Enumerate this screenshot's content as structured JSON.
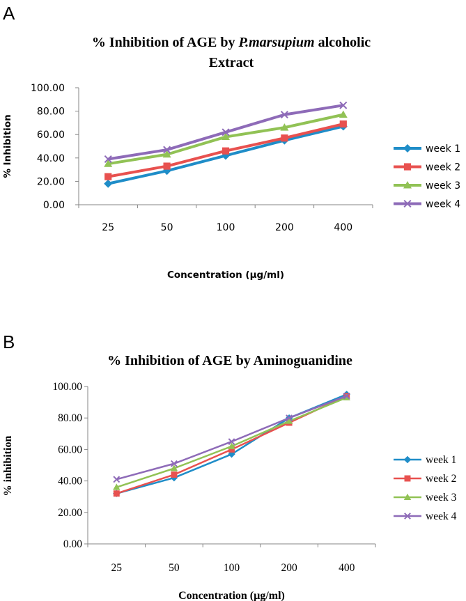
{
  "chart_data": [
    {
      "panel": "A",
      "type": "line",
      "title_parts": [
        {
          "text": "% Inhibition of AGE by ",
          "italic": false
        },
        {
          "text": "P.marsupium",
          "italic": true
        },
        {
          "text": " alcoholic",
          "italic": false
        }
      ],
      "title_line2": "Extract",
      "xlabel": "Concentration (µg/ml)",
      "ylabel": "% Inhibition",
      "categories": [
        "25",
        "50",
        "100",
        "200",
        "400"
      ],
      "ylim": [
        0,
        100
      ],
      "yticks": [
        "0.00",
        "20.00",
        "40.00",
        "60.00",
        "80.00",
        "100.00"
      ],
      "series": [
        {
          "name": "week 1",
          "color": "#1F8DC8",
          "marker": "diamond",
          "values": [
            18,
            29,
            42,
            55,
            67
          ]
        },
        {
          "name": "week 2",
          "color": "#E8514F",
          "marker": "square",
          "values": [
            24,
            33,
            46,
            57,
            69
          ]
        },
        {
          "name": "week 3",
          "color": "#91C255",
          "marker": "triangle",
          "values": [
            35,
            43,
            58,
            66,
            77
          ]
        },
        {
          "name": "week 4",
          "color": "#8E6BB8",
          "marker": "x",
          "values": [
            39,
            47,
            62,
            77,
            85
          ]
        }
      ]
    },
    {
      "panel": "B",
      "type": "line",
      "title_parts": [
        {
          "text": "% Inhibition of AGE by Aminoguanidine",
          "italic": false
        }
      ],
      "title_line2": "",
      "xlabel": "Concentration (µg/ml)",
      "ylabel": "% inhibition",
      "categories": [
        "25",
        "50",
        "100",
        "200",
        "400"
      ],
      "ylim": [
        0,
        100
      ],
      "yticks": [
        "0.00",
        "20.00",
        "40.00",
        "60.00",
        "80.00",
        "100.00"
      ],
      "series": [
        {
          "name": "week 1",
          "color": "#1F8DC8",
          "marker": "diamond",
          "values": [
            32,
            42,
            57,
            80,
            95
          ]
        },
        {
          "name": "week 2",
          "color": "#E8514F",
          "marker": "square",
          "values": [
            32,
            44,
            60,
            77,
            94
          ]
        },
        {
          "name": "week 3",
          "color": "#91C255",
          "marker": "triangle",
          "values": [
            36,
            48,
            62,
            78,
            93
          ]
        },
        {
          "name": "week 4",
          "color": "#8E6BB8",
          "marker": "x",
          "values": [
            41,
            51,
            65,
            80,
            94
          ]
        }
      ]
    }
  ]
}
